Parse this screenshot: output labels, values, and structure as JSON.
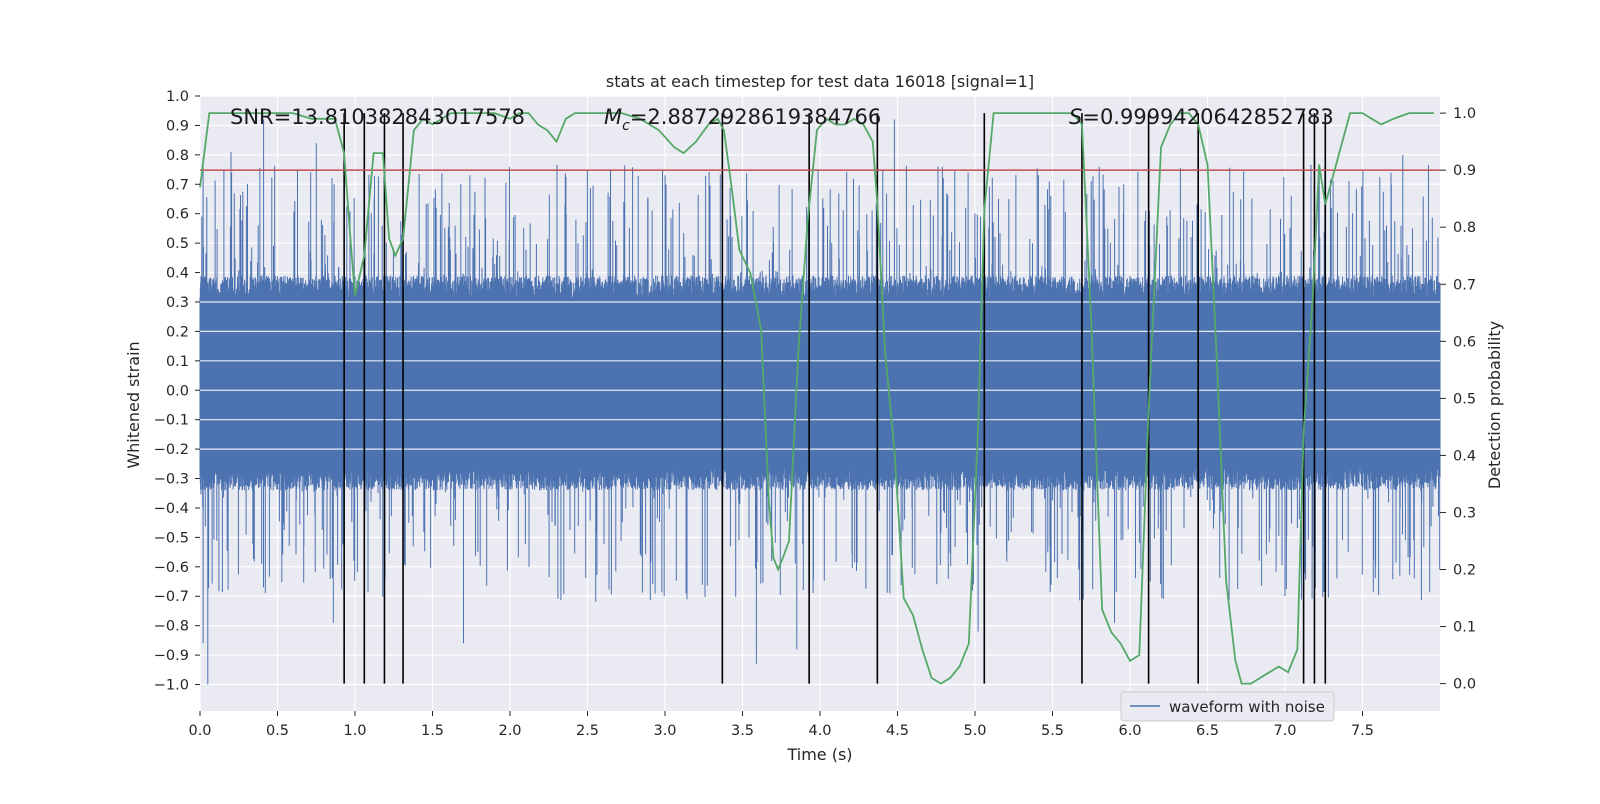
{
  "chart_data": {
    "type": "line",
    "title": "stats at each timestep for test data 16018 [signal=1]",
    "xlabel": "Time (s)",
    "ylabel": "Whitened strain",
    "y2label": "Detection probability",
    "xlim": [
      0.0,
      8.0
    ],
    "ylim": [
      -1.09,
      1.0
    ],
    "y2lim": [
      -0.048,
      1.03
    ],
    "x_ticks": [
      "0.0",
      "0.5",
      "1.0",
      "1.5",
      "2.0",
      "2.5",
      "3.0",
      "3.5",
      "4.0",
      "4.5",
      "5.0",
      "5.5",
      "6.0",
      "6.5",
      "7.0",
      "7.5"
    ],
    "y_ticks": [
      "1.0",
      "0.9",
      "0.8",
      "0.7",
      "0.6",
      "0.5",
      "0.4",
      "0.3",
      "0.2",
      "0.1",
      "0.0",
      "−0.1",
      "−0.2",
      "−0.3",
      "−0.4",
      "−0.5",
      "−0.6",
      "−0.7",
      "−0.8",
      "−0.9",
      "−1.0"
    ],
    "y2_ticks": [
      "1.0",
      "0.9",
      "0.8",
      "0.7",
      "0.6",
      "0.5",
      "0.4",
      "0.3",
      "0.2",
      "0.1",
      "0.0"
    ],
    "annotations": {
      "snr": "SNR=13.810382843017578",
      "mc_symbol": "M",
      "mc_sub": "c",
      "mc_value": "=2.8872928619384766",
      "s_symbol": "S",
      "s_value": "=0.9999420642852783"
    },
    "threshold": 0.9,
    "threshold_color": "#c44e52",
    "legend": [
      {
        "label": "waveform with noise",
        "color": "#4c72b0"
      }
    ],
    "event_lines_x": [
      0.93,
      1.06,
      1.19,
      1.31,
      3.37,
      3.93,
      4.37,
      5.06,
      5.69,
      6.12,
      6.44,
      7.12,
      7.19,
      7.26
    ],
    "waveform": {
      "name": "waveform with noise",
      "color": "#4c72b0",
      "dense_band": [
        -0.26,
        0.31
      ],
      "notable_spikes": [
        {
          "x": 0.02,
          "y": -0.86
        },
        {
          "x": 0.05,
          "y": -1.0
        },
        {
          "x": 0.02,
          "y": 0.78
        },
        {
          "x": 0.2,
          "y": 0.81
        },
        {
          "x": 0.41,
          "y": 0.92
        },
        {
          "x": 0.75,
          "y": 0.84
        },
        {
          "x": 0.86,
          "y": -0.79
        },
        {
          "x": 1.7,
          "y": -0.86
        },
        {
          "x": 3.59,
          "y": -0.93
        },
        {
          "x": 3.85,
          "y": -0.88
        },
        {
          "x": 4.48,
          "y": 0.92
        },
        {
          "x": 5.02,
          "y": -0.82
        },
        {
          "x": 5.9,
          "y": -0.79
        },
        {
          "x": 7.76,
          "y": 0.8
        }
      ]
    },
    "probability_series": {
      "name": "Detection probability",
      "color": "#55a868",
      "x": [
        0.0,
        0.06,
        0.12,
        0.24,
        0.36,
        0.48,
        0.6,
        0.72,
        0.87,
        0.93,
        0.97,
        1.0,
        1.06,
        1.12,
        1.18,
        1.22,
        1.26,
        1.31,
        1.38,
        1.44,
        1.5,
        1.56,
        1.62,
        1.68,
        1.74,
        1.8,
        1.9,
        2.0,
        2.06,
        2.12,
        2.18,
        2.24,
        2.3,
        2.36,
        2.42,
        2.48,
        2.6,
        2.72,
        2.84,
        2.96,
        3.06,
        3.12,
        3.2,
        3.28,
        3.34,
        3.38,
        3.43,
        3.48,
        3.55,
        3.62,
        3.67,
        3.7,
        3.73,
        3.76,
        3.8,
        3.86,
        3.92,
        3.98,
        4.04,
        4.1,
        4.16,
        4.22,
        4.28,
        4.34,
        4.37,
        4.42,
        4.48,
        4.54,
        4.6,
        4.66,
        4.72,
        4.78,
        4.84,
        4.9,
        4.96,
        5.02,
        5.06,
        5.12,
        5.2,
        5.3,
        5.42,
        5.54,
        5.63,
        5.69,
        5.75,
        5.82,
        5.88,
        5.94,
        6.0,
        6.06,
        6.12,
        6.2,
        6.26,
        6.32,
        6.38,
        6.44,
        6.5,
        6.56,
        6.62,
        6.68,
        6.72,
        6.78,
        6.84,
        6.9,
        6.96,
        7.02,
        7.08,
        7.12,
        7.18,
        7.22,
        7.26,
        7.3,
        7.36,
        7.42,
        7.5,
        7.56,
        7.62,
        7.7,
        7.8,
        7.96
      ],
      "values": [
        0.87,
        1.0,
        1.0,
        1.0,
        1.0,
        1.0,
        1.0,
        0.99,
        0.99,
        0.93,
        0.78,
        0.68,
        0.75,
        0.93,
        0.93,
        0.78,
        0.75,
        0.78,
        0.97,
        0.99,
        0.98,
        0.99,
        1.0,
        1.0,
        1.0,
        1.0,
        1.0,
        0.99,
        1.0,
        1.0,
        0.98,
        0.97,
        0.95,
        0.99,
        1.0,
        1.0,
        1.0,
        1.0,
        0.99,
        0.97,
        0.94,
        0.93,
        0.95,
        0.98,
        0.99,
        0.97,
        0.87,
        0.76,
        0.72,
        0.62,
        0.32,
        0.22,
        0.2,
        0.22,
        0.25,
        0.58,
        0.81,
        0.97,
        0.99,
        0.98,
        0.98,
        0.99,
        0.98,
        0.95,
        0.84,
        0.58,
        0.41,
        0.15,
        0.12,
        0.06,
        0.01,
        0.0,
        0.01,
        0.03,
        0.07,
        0.45,
        0.83,
        1.0,
        1.0,
        1.0,
        1.0,
        1.0,
        1.0,
        0.98,
        0.63,
        0.13,
        0.09,
        0.07,
        0.04,
        0.05,
        0.48,
        0.94,
        0.98,
        1.0,
        1.0,
        0.98,
        0.91,
        0.57,
        0.18,
        0.04,
        0.0,
        0.0,
        0.01,
        0.02,
        0.03,
        0.02,
        0.06,
        0.44,
        0.68,
        0.91,
        0.84,
        0.88,
        0.94,
        1.0,
        1.0,
        0.99,
        0.98,
        0.99,
        1.0,
        1.0
      ]
    }
  }
}
